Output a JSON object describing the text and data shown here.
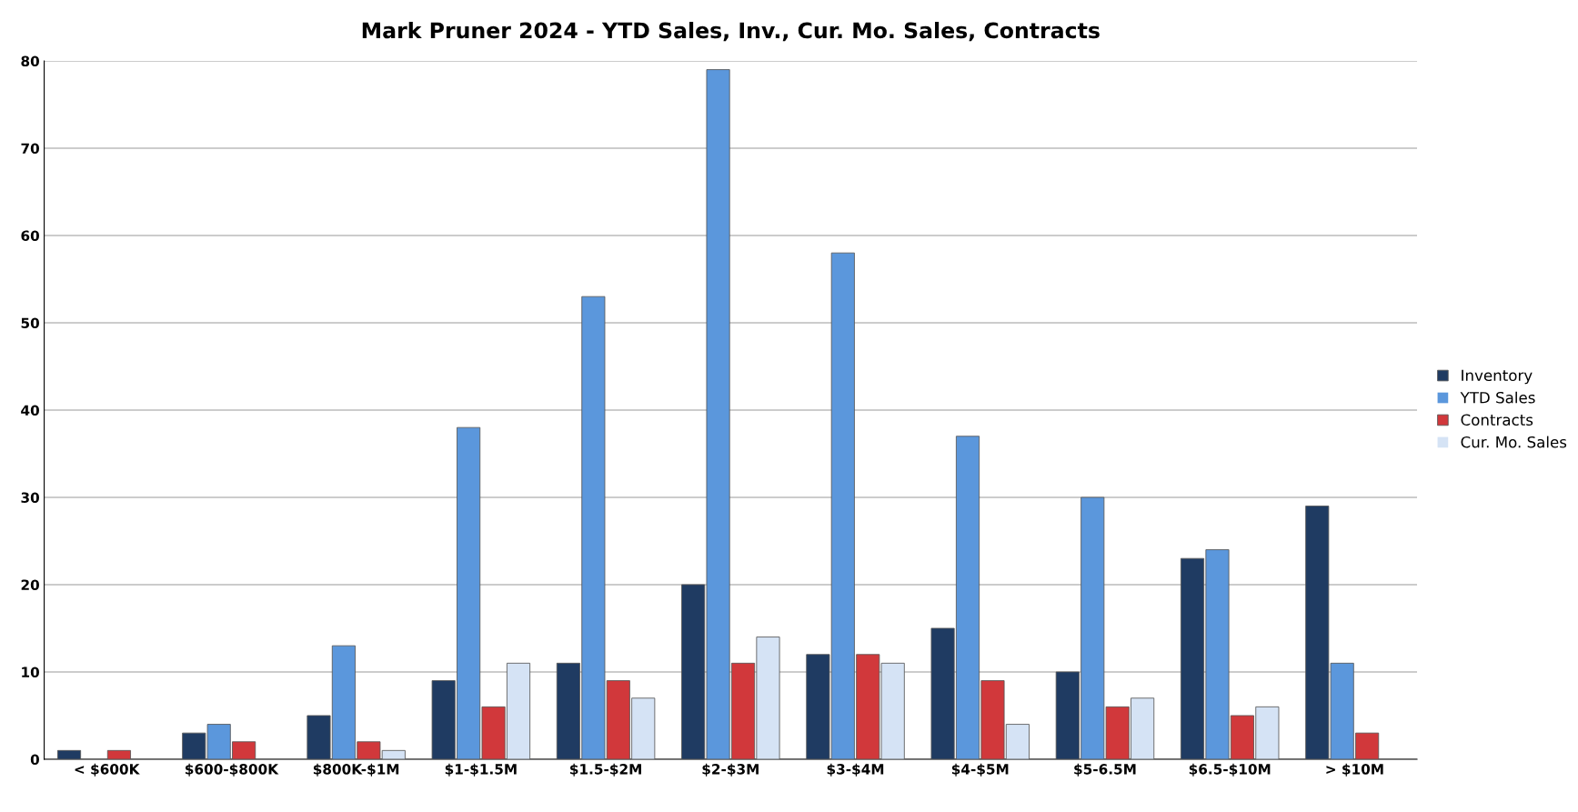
{
  "chart_data": {
    "type": "bar",
    "title": "Mark Pruner 2024 - YTD Sales, Inv., Cur. Mo. Sales, Contracts",
    "categories": [
      "< $600K",
      "$600-$800K",
      "$800K-$1M",
      "$1-$1.5M",
      "$1.5-$2M",
      "$2-$3M",
      "$3-$4M",
      "$4-$5M",
      "$5-6.5M",
      "$6.5-$10M",
      "> $10M"
    ],
    "series": [
      {
        "name": "Inventory",
        "color": "#1f3b62",
        "values": [
          1,
          3,
          5,
          9,
          11,
          20,
          12,
          15,
          10,
          23,
          29
        ]
      },
      {
        "name": "YTD Sales",
        "color": "#5b97dc",
        "values": [
          0,
          4,
          13,
          38,
          53,
          79,
          58,
          37,
          30,
          24,
          11
        ]
      },
      {
        "name": "Contracts",
        "color": "#d1383b",
        "values": [
          1,
          2,
          2,
          6,
          9,
          11,
          12,
          9,
          6,
          5,
          3
        ]
      },
      {
        "name": "Cur. Mo. Sales",
        "color": "#d5e3f5",
        "values": [
          0,
          0,
          1,
          11,
          7,
          14,
          11,
          4,
          7,
          6,
          0
        ]
      }
    ],
    "ylim": [
      0,
      80
    ],
    "yticks": [
      0,
      10,
      20,
      30,
      40,
      50,
      60,
      70,
      80
    ],
    "grid": "y",
    "legend": "right"
  }
}
